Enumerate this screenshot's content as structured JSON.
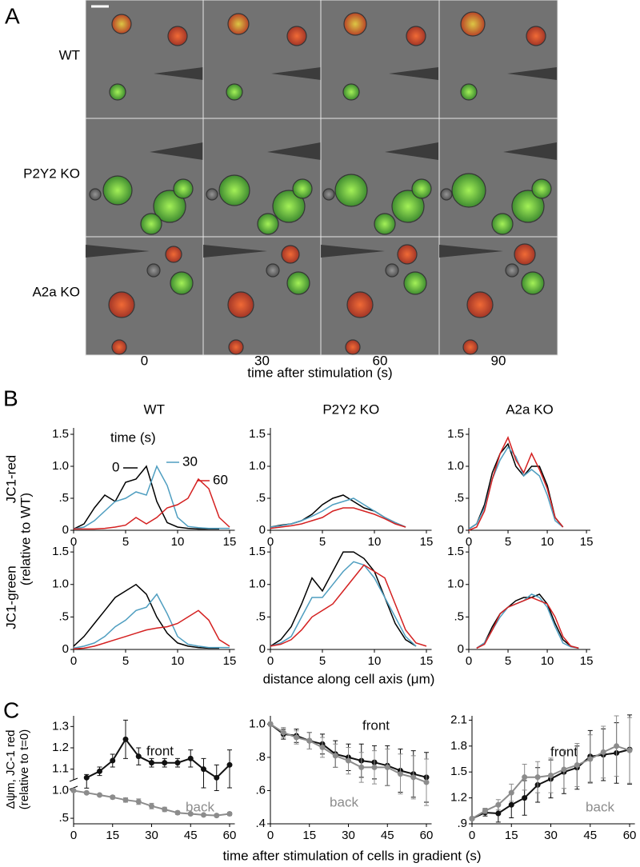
{
  "panel_a": {
    "label": "A",
    "rows": [
      "WT",
      "P2Y2 KO",
      "A2a KO"
    ],
    "columns": [
      0,
      30,
      60,
      90
    ],
    "xlabel": "time after stimulation (s)"
  },
  "panel_b": {
    "label": "B",
    "ylabel_note": "(relative to WT)",
    "xlabel": "distance along cell axis (μm)"
  },
  "panel_c": {
    "label": "C",
    "ylabel": [
      "Δψm, JC-1 red",
      "(relative to t=0)"
    ],
    "xlabel": "time after stimulation of cells in gradient (s)"
  },
  "chart_data": [
    {
      "type": "line",
      "title": "WT",
      "ylabel": "JC1-red",
      "legend_title": "time (s)",
      "x": [
        0,
        1,
        2,
        3,
        4,
        5,
        6,
        7,
        8,
        9,
        10,
        11,
        12,
        13,
        14,
        15
      ],
      "xlim": [
        0,
        15.5
      ],
      "xticks": [
        0,
        5,
        10,
        15
      ],
      "ylim": [
        0,
        1.6
      ],
      "yticks": [
        0,
        {
          "value": 0.5,
          "label": ".5"
        },
        {
          "value": 1,
          "label": "1.0"
        },
        1.5
      ],
      "series": [
        {
          "name": "0",
          "color": "#000000",
          "values": [
            0.02,
            0.1,
            0.35,
            0.55,
            0.45,
            0.75,
            0.8,
            1.0,
            0.45,
            0.12,
            0.05,
            0.03,
            0.02,
            0.02,
            0.02,
            null
          ]
        },
        {
          "name": "30",
          "color": "#4f9ec0",
          "values": [
            0.02,
            0.05,
            0.15,
            0.3,
            0.45,
            0.5,
            0.6,
            0.55,
            1.0,
            0.7,
            0.2,
            0.06,
            0.04,
            0.03,
            0.03,
            0.03
          ]
        },
        {
          "name": "60",
          "color": "#d42020",
          "values": [
            0.02,
            0.02,
            0.02,
            0.03,
            0.05,
            0.08,
            0.2,
            0.1,
            0.2,
            0.35,
            0.4,
            0.5,
            0.8,
            0.65,
            0.2,
            0.05
          ]
        }
      ]
    },
    {
      "type": "line",
      "title": "P2Y2 KO",
      "x": [
        0,
        1,
        2,
        3,
        4,
        5,
        6,
        7,
        8,
        9,
        10,
        11,
        12,
        13,
        14,
        15
      ],
      "xlim": [
        0,
        15.5
      ],
      "xticks": [
        0,
        5,
        10,
        15
      ],
      "ylim": [
        0,
        1.6
      ],
      "yticks": [
        0,
        {
          "value": 0.5,
          "label": ".5"
        },
        {
          "value": 1,
          "label": "1.0"
        },
        1.5
      ],
      "series": [
        {
          "color": "#000000",
          "values": [
            0.05,
            0.08,
            0.1,
            0.15,
            0.25,
            0.4,
            0.5,
            0.55,
            0.45,
            0.35,
            0.3,
            0.2,
            0.12,
            0.05,
            null,
            null
          ]
        },
        {
          "color": "#4f9ec0",
          "values": [
            0.05,
            0.07,
            0.1,
            0.15,
            0.22,
            0.3,
            0.4,
            0.45,
            0.5,
            0.4,
            0.3,
            0.2,
            0.12,
            0.05,
            null,
            null
          ]
        },
        {
          "color": "#d42020",
          "values": [
            0.03,
            0.05,
            0.07,
            0.1,
            0.15,
            0.2,
            0.3,
            0.35,
            0.35,
            0.3,
            0.25,
            0.18,
            0.1,
            0.05,
            null,
            null
          ]
        }
      ]
    },
    {
      "type": "line",
      "title": "A2a KO",
      "x": [
        0,
        1,
        2,
        3,
        4,
        5,
        6,
        7,
        8,
        9,
        10,
        11,
        12,
        13,
        14,
        15
      ],
      "xlim": [
        0,
        15.5
      ],
      "xticks": [
        0,
        5,
        10,
        15
      ],
      "ylim": [
        0,
        1.6
      ],
      "yticks": [
        0,
        {
          "value": 0.5,
          "label": ".5"
        },
        {
          "value": 1,
          "label": "1.0"
        },
        1.5
      ],
      "series": [
        {
          "color": "#000000",
          "values": [
            0.02,
            0.1,
            0.4,
            0.9,
            1.2,
            1.35,
            1.0,
            0.85,
            1.0,
            1.0,
            0.7,
            0.2,
            0.05,
            null,
            null,
            null
          ]
        },
        {
          "color": "#4f9ec0",
          "values": [
            0.02,
            0.1,
            0.35,
            0.8,
            1.1,
            1.3,
            1.15,
            0.85,
            0.95,
            0.85,
            0.55,
            0.15,
            0.05,
            null,
            null,
            null
          ]
        },
        {
          "color": "#d42020",
          "values": [
            0.0,
            0.05,
            0.3,
            0.8,
            1.2,
            1.45,
            1.1,
            0.9,
            1.2,
            0.95,
            0.65,
            0.2,
            0.05,
            null,
            null,
            null
          ]
        }
      ]
    },
    {
      "type": "line",
      "ylabel": "JC1-green",
      "x": [
        0,
        1,
        2,
        3,
        4,
        5,
        6,
        7,
        8,
        9,
        10,
        11,
        12,
        13,
        14,
        15
      ],
      "xlim": [
        0,
        15.5
      ],
      "xticks": [
        0,
        5,
        10,
        15
      ],
      "ylim": [
        0,
        1.6
      ],
      "yticks": [
        0,
        {
          "value": 0.5,
          "label": ".5"
        },
        {
          "value": 1,
          "label": "1.0"
        },
        1.5
      ],
      "series": [
        {
          "color": "#000000",
          "values": [
            0.05,
            0.2,
            0.4,
            0.6,
            0.8,
            0.9,
            1.0,
            0.85,
            0.5,
            0.25,
            0.1,
            0.05,
            0.03,
            0.02,
            0.02,
            null
          ]
        },
        {
          "color": "#4f9ec0",
          "values": [
            0.02,
            0.05,
            0.1,
            0.2,
            0.35,
            0.45,
            0.6,
            0.65,
            0.85,
            0.55,
            0.2,
            0.08,
            0.05,
            0.03,
            0.03,
            0.03
          ]
        },
        {
          "color": "#d42020",
          "values": [
            0.01,
            0.02,
            0.05,
            0.1,
            0.15,
            0.2,
            0.25,
            0.3,
            0.33,
            0.35,
            0.4,
            0.5,
            0.6,
            0.45,
            0.15,
            0.05
          ]
        }
      ]
    },
    {
      "type": "line",
      "x": [
        0,
        1,
        2,
        3,
        4,
        5,
        6,
        7,
        8,
        9,
        10,
        11,
        12,
        13,
        14,
        15
      ],
      "xlim": [
        0,
        15.5
      ],
      "xticks": [
        0,
        5,
        10,
        15
      ],
      "ylim": [
        0,
        1.6
      ],
      "yticks": [
        0,
        {
          "value": 0.5,
          "label": ".5"
        },
        {
          "value": 1,
          "label": "1.0"
        },
        1.5
      ],
      "series": [
        {
          "color": "#000000",
          "values": [
            0.05,
            0.15,
            0.35,
            0.7,
            1.1,
            0.9,
            1.2,
            1.5,
            1.5,
            1.4,
            1.2,
            0.8,
            0.4,
            0.15,
            0.05,
            null
          ]
        },
        {
          "color": "#4f9ec0",
          "values": [
            0.05,
            0.1,
            0.2,
            0.5,
            0.8,
            0.8,
            1.0,
            1.2,
            1.35,
            1.3,
            1.1,
            0.8,
            0.5,
            0.2,
            0.05,
            null
          ]
        },
        {
          "color": "#d42020",
          "values": [
            0.05,
            0.08,
            0.15,
            0.3,
            0.5,
            0.6,
            0.7,
            0.9,
            1.1,
            1.3,
            1.2,
            1.1,
            0.7,
            0.3,
            0.1,
            0.05
          ]
        }
      ]
    },
    {
      "type": "line",
      "x": [
        0,
        1,
        2,
        3,
        4,
        5,
        6,
        7,
        8,
        9,
        10,
        11,
        12,
        13,
        14,
        15
      ],
      "xlim": [
        0,
        15.5
      ],
      "xticks": [
        0,
        5,
        10,
        15
      ],
      "ylim": [
        0,
        1.6
      ],
      "yticks": [
        0,
        {
          "value": 0.5,
          "label": ".5"
        },
        {
          "value": 1,
          "label": "1.0"
        },
        1.5
      ],
      "series": [
        {
          "color": "#000000",
          "values": [
            null,
            0.02,
            0.1,
            0.35,
            0.55,
            0.65,
            0.75,
            0.8,
            0.8,
            0.85,
            0.7,
            0.4,
            0.15,
            0.05,
            0.02,
            null
          ]
        },
        {
          "color": "#4f9ec0",
          "values": [
            null,
            0.02,
            0.1,
            0.3,
            0.5,
            0.65,
            0.7,
            0.75,
            0.85,
            0.8,
            0.65,
            0.35,
            0.1,
            0.04,
            0.02,
            null
          ]
        },
        {
          "color": "#d42020",
          "values": [
            null,
            0.02,
            0.08,
            0.3,
            0.55,
            0.65,
            0.7,
            0.75,
            0.8,
            0.75,
            0.7,
            0.5,
            0.2,
            0.05,
            0.02,
            null
          ]
        }
      ]
    },
    {
      "type": "errorbar",
      "x": [
        0,
        5,
        10,
        15,
        20,
        25,
        30,
        35,
        40,
        45,
        50,
        55,
        60
      ],
      "xlim": [
        0,
        62
      ],
      "xticks": [
        0,
        15,
        30,
        45,
        60
      ],
      "ylim": [
        0.4,
        1.35
      ],
      "y_break": 1.05,
      "yticks": [
        {
          "value": 0.5,
          "label": ".5"
        },
        {
          "value": 1,
          "label": "1.0"
        },
        1.1,
        1.2,
        1.3
      ],
      "series": [
        {
          "name": "front",
          "color": "#111111",
          "values": [
            null,
            1.06,
            1.09,
            1.14,
            1.24,
            1.16,
            1.13,
            1.13,
            1.13,
            1.15,
            1.1,
            1.06,
            1.12
          ],
          "errors": [
            null,
            0.015,
            0.02,
            0.03,
            0.09,
            0.04,
            0.02,
            0.02,
            0.02,
            0.04,
            0.05,
            0.06,
            0.07
          ]
        },
        {
          "name": "back",
          "color": "#8c8c8c",
          "values": [
            1.0,
            0.96,
            0.92,
            0.88,
            0.83,
            0.8,
            0.72,
            0.66,
            0.6,
            0.58,
            0.56,
            0.55,
            0.58
          ],
          "errors": [
            0.01,
            0.02,
            0.02,
            0.03,
            0.04,
            0.05,
            0.05,
            0.04,
            0.03,
            0.02,
            0.02,
            0.02,
            0.03
          ]
        }
      ]
    },
    {
      "type": "errorbar",
      "x": [
        0,
        5,
        10,
        15,
        20,
        25,
        30,
        35,
        40,
        45,
        50,
        55,
        60
      ],
      "xlim": [
        0,
        62
      ],
      "xticks": [
        0,
        15,
        30,
        45,
        60
      ],
      "ylim": [
        0.4,
        1.05
      ],
      "yticks": [
        {
          "value": 0.4,
          "label": ".4"
        },
        {
          "value": 0.6,
          "label": ".6"
        },
        {
          "value": 0.8,
          "label": ".8"
        },
        {
          "value": 1,
          "label": "1.0"
        }
      ],
      "series": [
        {
          "name": "front",
          "color": "#111111",
          "values": [
            1.0,
            0.94,
            0.93,
            0.9,
            0.88,
            0.82,
            0.8,
            0.78,
            0.77,
            0.75,
            0.72,
            0.7,
            0.68
          ],
          "errors": [
            0.01,
            0.03,
            0.04,
            0.05,
            0.06,
            0.08,
            0.08,
            0.1,
            0.1,
            0.12,
            0.13,
            0.14,
            0.15
          ]
        },
        {
          "name": "back",
          "color": "#8c8c8c",
          "values": [
            1.0,
            0.95,
            0.92,
            0.9,
            0.86,
            0.81,
            0.78,
            0.74,
            0.74,
            0.74,
            0.7,
            0.68,
            0.65
          ],
          "errors": [
            0.01,
            0.03,
            0.04,
            0.05,
            0.06,
            0.07,
            0.08,
            0.09,
            0.1,
            0.11,
            0.12,
            0.13,
            0.14
          ]
        }
      ]
    },
    {
      "type": "errorbar",
      "x": [
        0,
        5,
        10,
        15,
        20,
        25,
        30,
        35,
        40,
        45,
        50,
        55,
        60
      ],
      "xlim": [
        0,
        62
      ],
      "xticks": [
        0,
        15,
        30,
        45,
        60
      ],
      "ylim": [
        0.9,
        2.15
      ],
      "yticks": [
        {
          "value": 0.9,
          "label": ".9"
        },
        1.2,
        1.5,
        1.8,
        2.1
      ],
      "series": [
        {
          "name": "front",
          "color": "#111111",
          "values": [
            0.96,
            1.03,
            1.02,
            1.12,
            1.2,
            1.35,
            1.42,
            1.5,
            1.55,
            1.68,
            1.7,
            1.72,
            1.76
          ],
          "errors": [
            0.01,
            0.04,
            0.1,
            0.15,
            0.2,
            0.2,
            0.22,
            0.25,
            0.25,
            0.3,
            0.3,
            0.35,
            0.4
          ]
        },
        {
          "name": "back",
          "color": "#8c8c8c",
          "values": [
            0.96,
            1.05,
            1.12,
            1.26,
            1.44,
            1.44,
            1.46,
            1.53,
            1.58,
            1.65,
            1.73,
            1.8,
            1.75
          ],
          "errors": [
            0.01,
            0.03,
            0.06,
            0.1,
            0.15,
            0.18,
            0.2,
            0.22,
            0.25,
            0.28,
            0.3,
            0.35,
            0.38
          ]
        }
      ]
    }
  ]
}
